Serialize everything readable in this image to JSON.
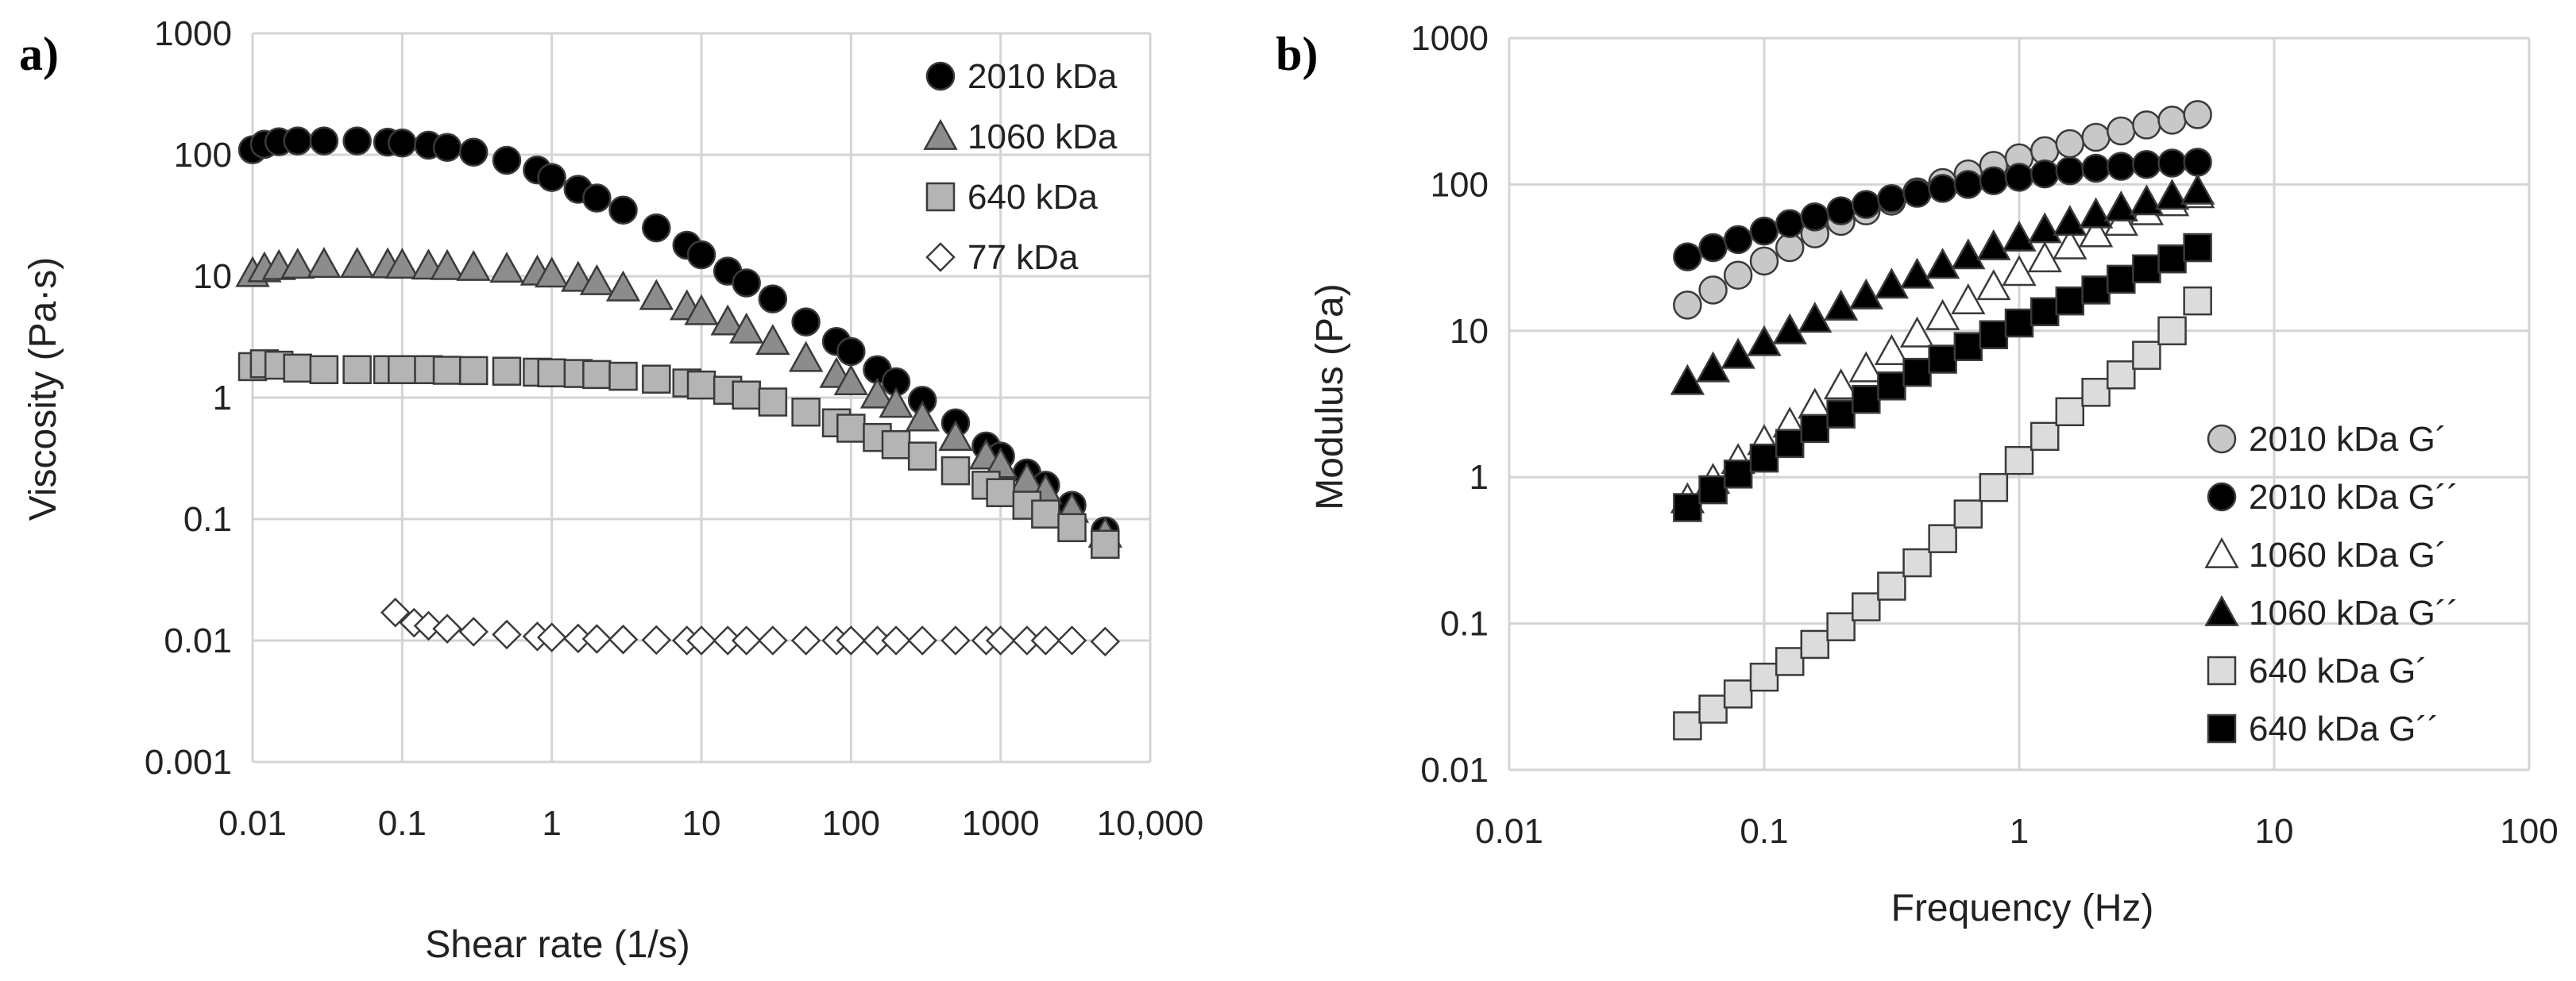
{
  "chart_data": [
    {
      "id": "a",
      "panel_label": "a)",
      "type": "scatter",
      "x_scale": "log",
      "y_scale": "log",
      "xlim": [
        0.01,
        10000
      ],
      "ylim": [
        0.001,
        1000
      ],
      "xlabel": "Shear rate (1/s)",
      "ylabel": "Viscosity (Pa·s)",
      "xtick_labels": [
        "0.01",
        "0.1",
        "1",
        "10",
        "100",
        "1000",
        "10,000"
      ],
      "ytick_labels": [
        "0.001",
        "0.01",
        "0.1",
        "1",
        "10",
        "100",
        "1000"
      ],
      "grid": true,
      "legend_position": "top-right",
      "series": [
        {
          "name": "2010 kDa",
          "marker": "circle",
          "color": "#000000",
          "x": [
            0.01,
            0.012,
            0.015,
            0.02,
            0.03,
            0.05,
            0.08,
            0.1,
            0.15,
            0.2,
            0.3,
            0.5,
            0.8,
            1,
            1.5,
            2,
            3,
            5,
            8,
            10,
            15,
            20,
            30,
            50,
            80,
            100,
            150,
            200,
            300,
            500,
            800,
            1000,
            1500,
            2000,
            3000,
            5000
          ],
          "y": [
            110,
            122,
            128,
            130,
            130,
            130,
            127,
            125,
            120,
            115,
            105,
            90,
            75,
            65,
            52,
            44,
            35,
            25,
            18,
            15,
            11,
            8.8,
            6.5,
            4.2,
            2.9,
            2.4,
            1.7,
            1.35,
            0.95,
            0.62,
            0.4,
            0.33,
            0.24,
            0.19,
            0.13,
            0.08
          ]
        },
        {
          "name": "1060 kDa",
          "marker": "triangle",
          "color": "#8c8c8c",
          "x": [
            0.01,
            0.012,
            0.015,
            0.02,
            0.03,
            0.05,
            0.08,
            0.1,
            0.15,
            0.2,
            0.3,
            0.5,
            0.8,
            1,
            1.5,
            2,
            3,
            5,
            8,
            10,
            15,
            20,
            30,
            50,
            80,
            100,
            150,
            200,
            300,
            500,
            800,
            1000,
            1500,
            2000,
            3000,
            5000
          ],
          "y": [
            10.5,
            11.5,
            12,
            12.3,
            12.5,
            12.5,
            12.4,
            12.3,
            12.1,
            12,
            11.8,
            11.4,
            10.8,
            10.4,
            9.6,
            9,
            8,
            6.8,
            5.6,
            5.1,
            4.2,
            3.6,
            2.9,
            2.1,
            1.55,
            1.35,
            1.05,
            0.88,
            0.68,
            0.47,
            0.33,
            0.28,
            0.21,
            0.17,
            0.12,
            0.075
          ]
        },
        {
          "name": "640 kDa",
          "marker": "square",
          "color": "#b4b4b4",
          "x": [
            0.01,
            0.012,
            0.015,
            0.02,
            0.03,
            0.05,
            0.08,
            0.1,
            0.15,
            0.2,
            0.3,
            0.5,
            0.8,
            1,
            1.5,
            2,
            3,
            5,
            8,
            10,
            15,
            20,
            30,
            50,
            80,
            100,
            150,
            200,
            300,
            500,
            800,
            1000,
            1500,
            2000,
            3000,
            5000
          ],
          "y": [
            1.8,
            1.9,
            1.85,
            1.75,
            1.7,
            1.7,
            1.7,
            1.7,
            1.7,
            1.68,
            1.67,
            1.65,
            1.62,
            1.6,
            1.58,
            1.55,
            1.5,
            1.42,
            1.32,
            1.27,
            1.15,
            1.05,
            0.92,
            0.76,
            0.62,
            0.56,
            0.47,
            0.41,
            0.33,
            0.25,
            0.19,
            0.165,
            0.13,
            0.11,
            0.085,
            0.062
          ]
        },
        {
          "name": "77 kDa",
          "marker": "diamond",
          "color": "#ffffff",
          "x": [
            0.09,
            0.12,
            0.15,
            0.2,
            0.3,
            0.5,
            0.8,
            1,
            1.5,
            2,
            3,
            5,
            8,
            10,
            15,
            20,
            30,
            50,
            80,
            100,
            150,
            200,
            300,
            500,
            800,
            1000,
            1500,
            2000,
            3000,
            5000
          ],
          "y": [
            0.017,
            0.014,
            0.0132,
            0.0125,
            0.0118,
            0.0112,
            0.0108,
            0.0106,
            0.0104,
            0.0103,
            0.0102,
            0.0101,
            0.01,
            0.01,
            0.01,
            0.01,
            0.01,
            0.01,
            0.01,
            0.01,
            0.01,
            0.01,
            0.01,
            0.01,
            0.01,
            0.01,
            0.01,
            0.01,
            0.01,
            0.0098
          ]
        }
      ]
    },
    {
      "id": "b",
      "panel_label": "b)",
      "type": "scatter",
      "x_scale": "log",
      "y_scale": "log",
      "xlim": [
        0.01,
        100
      ],
      "ylim": [
        0.01,
        1000
      ],
      "xlabel": "Frequency (Hz)",
      "ylabel": "Modulus (Pa)",
      "xtick_labels": [
        "0.01",
        "0.1",
        "1",
        "10",
        "100"
      ],
      "ytick_labels": [
        "0.01",
        "0.1",
        "1",
        "10",
        "100",
        "1000"
      ],
      "grid": true,
      "legend_position": "bottom-right",
      "series": [
        {
          "name": "2010 kDa G´",
          "marker": "circle",
          "color": "#c8c8c8",
          "x": [
            0.05,
            0.063,
            0.079,
            0.1,
            0.126,
            0.158,
            0.2,
            0.251,
            0.316,
            0.398,
            0.501,
            0.631,
            0.794,
            1,
            1.26,
            1.58,
            2,
            2.51,
            3.16,
            3.98,
            5.01
          ],
          "y": [
            15,
            19,
            24,
            30,
            37,
            46,
            56,
            66,
            77,
            89,
            103,
            118,
            135,
            152,
            170,
            190,
            210,
            232,
            255,
            275,
            300
          ]
        },
        {
          "name": "2010 kDa G´´",
          "marker": "circle",
          "color": "#000000",
          "x": [
            0.05,
            0.063,
            0.079,
            0.1,
            0.126,
            0.158,
            0.2,
            0.251,
            0.316,
            0.398,
            0.501,
            0.631,
            0.794,
            1,
            1.26,
            1.58,
            2,
            2.51,
            3.16,
            3.98,
            5.01
          ],
          "y": [
            32,
            37,
            42,
            48,
            54,
            60,
            66,
            73,
            80,
            87,
            94,
            100,
            106,
            112,
            118,
            124,
            129,
            133,
            137,
            140,
            142
          ]
        },
        {
          "name": "1060 kDa G´",
          "marker": "triangle",
          "color": "#ffffff",
          "x": [
            0.05,
            0.063,
            0.079,
            0.1,
            0.126,
            0.158,
            0.2,
            0.251,
            0.316,
            0.398,
            0.501,
            0.631,
            0.794,
            1,
            1.26,
            1.58,
            2,
            2.51,
            3.16,
            3.98,
            5.01
          ],
          "y": [
            0.7,
            0.95,
            1.3,
            1.75,
            2.3,
            3.1,
            4.2,
            5.5,
            7.2,
            9.5,
            12.5,
            16,
            20,
            25,
            31,
            38,
            46,
            55,
            65,
            75,
            85
          ]
        },
        {
          "name": "1060 kDa G´´",
          "marker": "triangle",
          "color": "#000000",
          "x": [
            0.05,
            0.063,
            0.079,
            0.1,
            0.126,
            0.158,
            0.2,
            0.251,
            0.316,
            0.398,
            0.501,
            0.631,
            0.794,
            1,
            1.26,
            1.58,
            2,
            2.51,
            3.16,
            3.98,
            5.01
          ],
          "y": [
            4.5,
            5.5,
            6.8,
            8.3,
            10,
            12,
            14.5,
            17.3,
            20.5,
            24,
            28,
            32.5,
            37.5,
            43,
            49,
            55,
            62,
            69,
            76,
            83,
            90
          ]
        },
        {
          "name": "640 kDa G´",
          "marker": "square",
          "color": "#dcdcdc",
          "x": [
            0.05,
            0.063,
            0.079,
            0.1,
            0.126,
            0.158,
            0.2,
            0.251,
            0.316,
            0.398,
            0.501,
            0.631,
            0.794,
            1,
            1.26,
            1.58,
            2,
            2.51,
            3.16,
            3.98,
            5.01
          ],
          "y": [
            0.02,
            0.026,
            0.033,
            0.043,
            0.055,
            0.072,
            0.095,
            0.13,
            0.18,
            0.26,
            0.38,
            0.56,
            0.85,
            1.3,
            1.9,
            2.8,
            3.8,
            5,
            6.8,
            10,
            16
          ]
        },
        {
          "name": "640 kDa G´´",
          "marker": "square",
          "color": "#000000",
          "x": [
            0.05,
            0.063,
            0.079,
            0.1,
            0.126,
            0.158,
            0.2,
            0.251,
            0.316,
            0.398,
            0.501,
            0.631,
            0.794,
            1,
            1.26,
            1.58,
            2,
            2.51,
            3.16,
            3.98,
            5.01
          ],
          "y": [
            0.62,
            0.82,
            1.05,
            1.35,
            1.7,
            2.15,
            2.7,
            3.4,
            4.2,
            5.2,
            6.4,
            7.8,
            9.4,
            11.3,
            13.5,
            16,
            19,
            22.5,
            26.5,
            31,
            37
          ]
        }
      ]
    }
  ]
}
